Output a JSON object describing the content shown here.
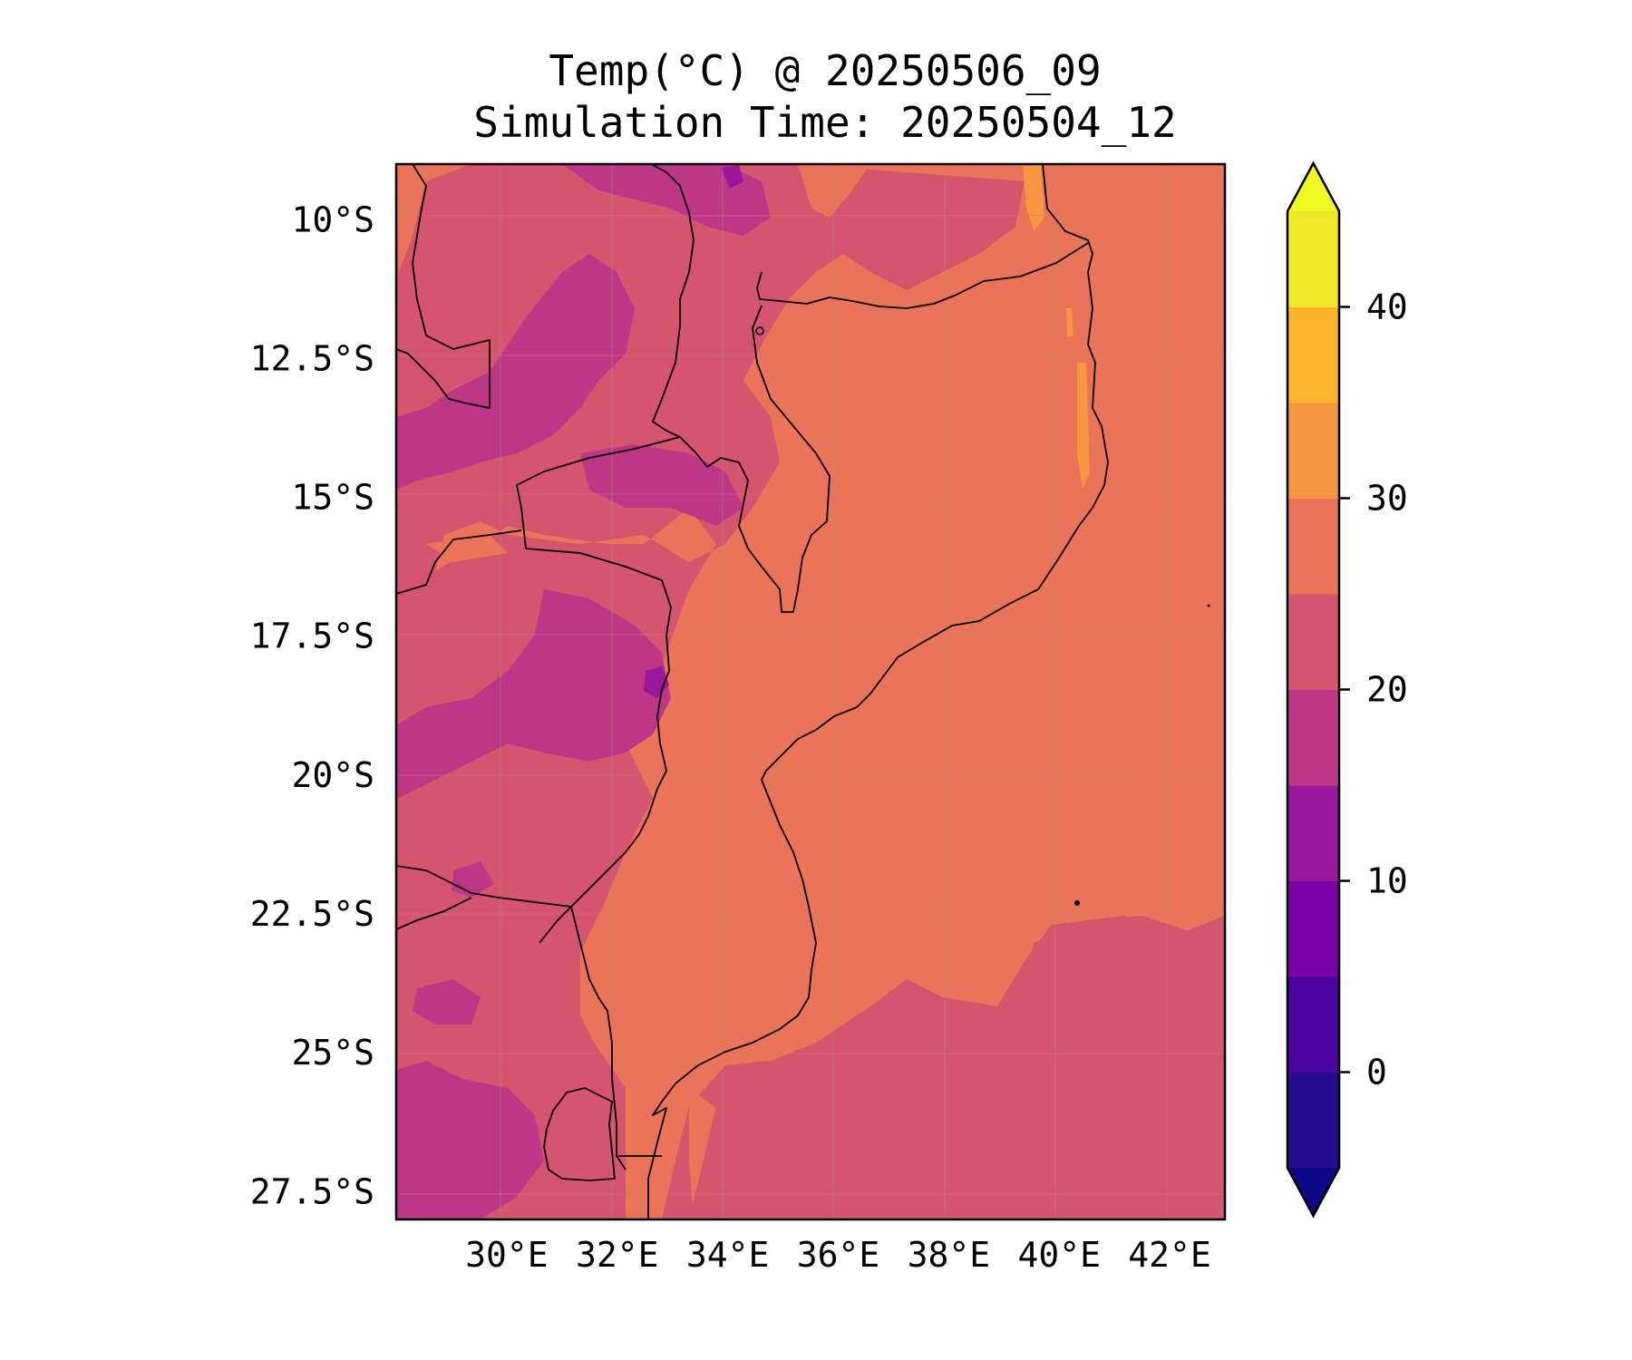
{
  "title": {
    "line1": "Temp(°C) @ 20250506_09",
    "line2": "Simulation Time: 20250504_12"
  },
  "map": {
    "variable": "Temp(°C)",
    "lon_range": [
      28.0,
      43.0
    ],
    "lat_range": [
      -28.0,
      -9.0
    ],
    "x_ticks": [
      {
        "value": 30,
        "label": "30°E"
      },
      {
        "value": 32,
        "label": "32°E"
      },
      {
        "value": 34,
        "label": "34°E"
      },
      {
        "value": 36,
        "label": "36°E"
      },
      {
        "value": 38,
        "label": "38°E"
      },
      {
        "value": 40,
        "label": "40°E"
      },
      {
        "value": 42,
        "label": "42°E"
      }
    ],
    "y_ticks": [
      {
        "value": -10,
        "label": "10°S"
      },
      {
        "value": -12.5,
        "label": "12.5°S"
      },
      {
        "value": -15,
        "label": "15°S"
      },
      {
        "value": -17.5,
        "label": "17.5°S"
      },
      {
        "value": -20,
        "label": "20°S"
      },
      {
        "value": -22.5,
        "label": "22.5°S"
      },
      {
        "value": -25,
        "label": "25°S"
      },
      {
        "value": -27.5,
        "label": "27.5°S"
      }
    ],
    "gridlines": true
  },
  "colorbar": {
    "min": -5,
    "max": 45,
    "extend": "both",
    "levels": [
      {
        "from": -5,
        "to": 0,
        "color": "#250d8f"
      },
      {
        "from": 0,
        "to": 5,
        "color": "#4a03a0"
      },
      {
        "from": 5,
        "to": 10,
        "color": "#7b02a8"
      },
      {
        "from": 10,
        "to": 15,
        "color": "#9a179b"
      },
      {
        "from": 15,
        "to": 20,
        "color": "#bd3786"
      },
      {
        "from": 20,
        "to": 25,
        "color": "#d5546e"
      },
      {
        "from": 25,
        "to": 30,
        "color": "#ea7457"
      },
      {
        "from": 30,
        "to": 35,
        "color": "#f89540"
      },
      {
        "from": 35,
        "to": 40,
        "color": "#fdb32f"
      },
      {
        "from": 40,
        "to": 45,
        "color": "#f0e827"
      }
    ],
    "under_color": "#0d0887",
    "over_color": "#f0f921",
    "ticks": [
      {
        "value": 0,
        "label": "0"
      },
      {
        "value": 10,
        "label": "10"
      },
      {
        "value": 20,
        "label": "20"
      },
      {
        "value": 30,
        "label": "30"
      },
      {
        "value": 40,
        "label": "40"
      }
    ]
  }
}
